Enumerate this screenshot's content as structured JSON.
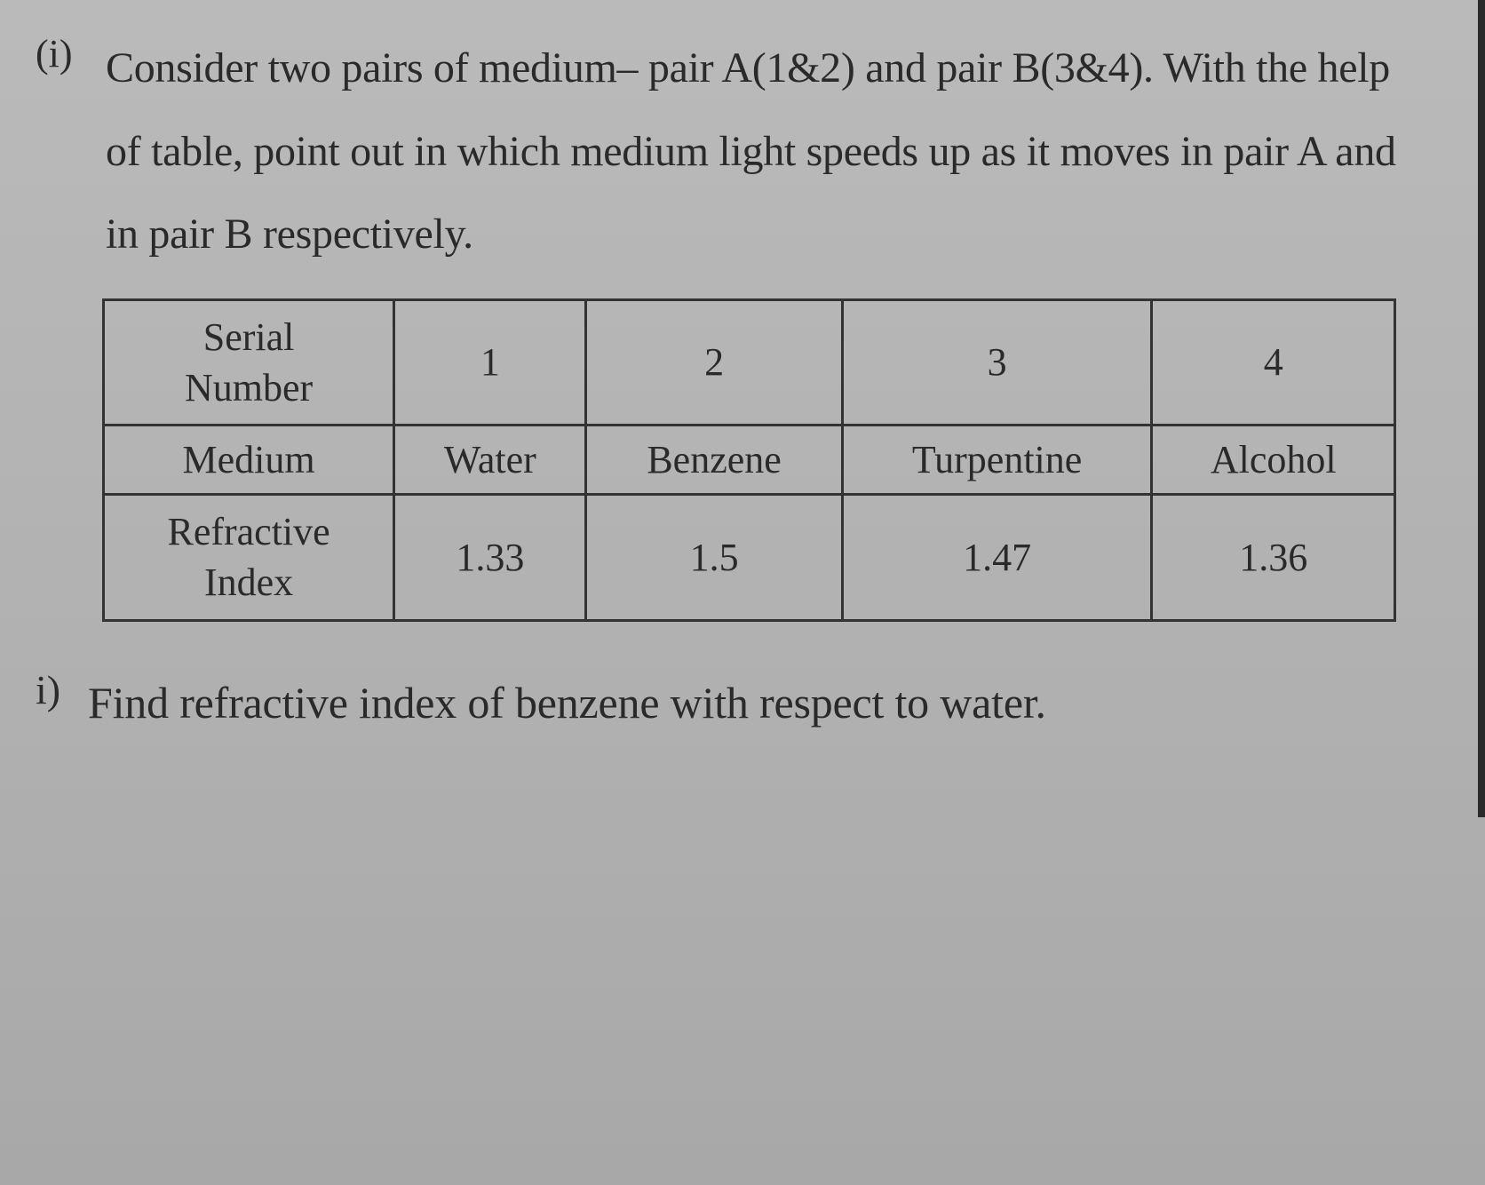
{
  "question1": {
    "label": "(i)",
    "text": "Consider two pairs of medium– pair A(1&2) and pair B(3&4). With the help of table, point out in which medium light speeds up as it moves in pair A and in pair B respectively."
  },
  "table": {
    "type": "table",
    "border_color": "#333333",
    "border_width": 3,
    "font_size": 44,
    "background_color": "transparent",
    "text_color": "#2a2a2a",
    "rows": [
      {
        "header": "Serial Number",
        "header_lines": [
          "Serial",
          "Number"
        ],
        "cells": [
          "1",
          "2",
          "3",
          "4"
        ]
      },
      {
        "header": "Medium",
        "header_lines": [
          "Medium"
        ],
        "cells": [
          "Water",
          "Benzene",
          "Turpentine",
          "Alcohol"
        ]
      },
      {
        "header": "Refractive Index",
        "header_lines": [
          "Refractive",
          "Index"
        ],
        "cells": [
          "1.33",
          "1.5",
          "1.47",
          "1.36"
        ]
      }
    ],
    "col_widths": [
      "auto",
      "auto",
      "auto",
      "auto",
      "auto"
    ]
  },
  "question2": {
    "label": "i)",
    "text": "Find refractive index of benzene with respect to water."
  },
  "colors": {
    "background_top": "#bababa",
    "background_bottom": "#a8a8a8",
    "text": "#2a2a2a",
    "border": "#333333"
  }
}
